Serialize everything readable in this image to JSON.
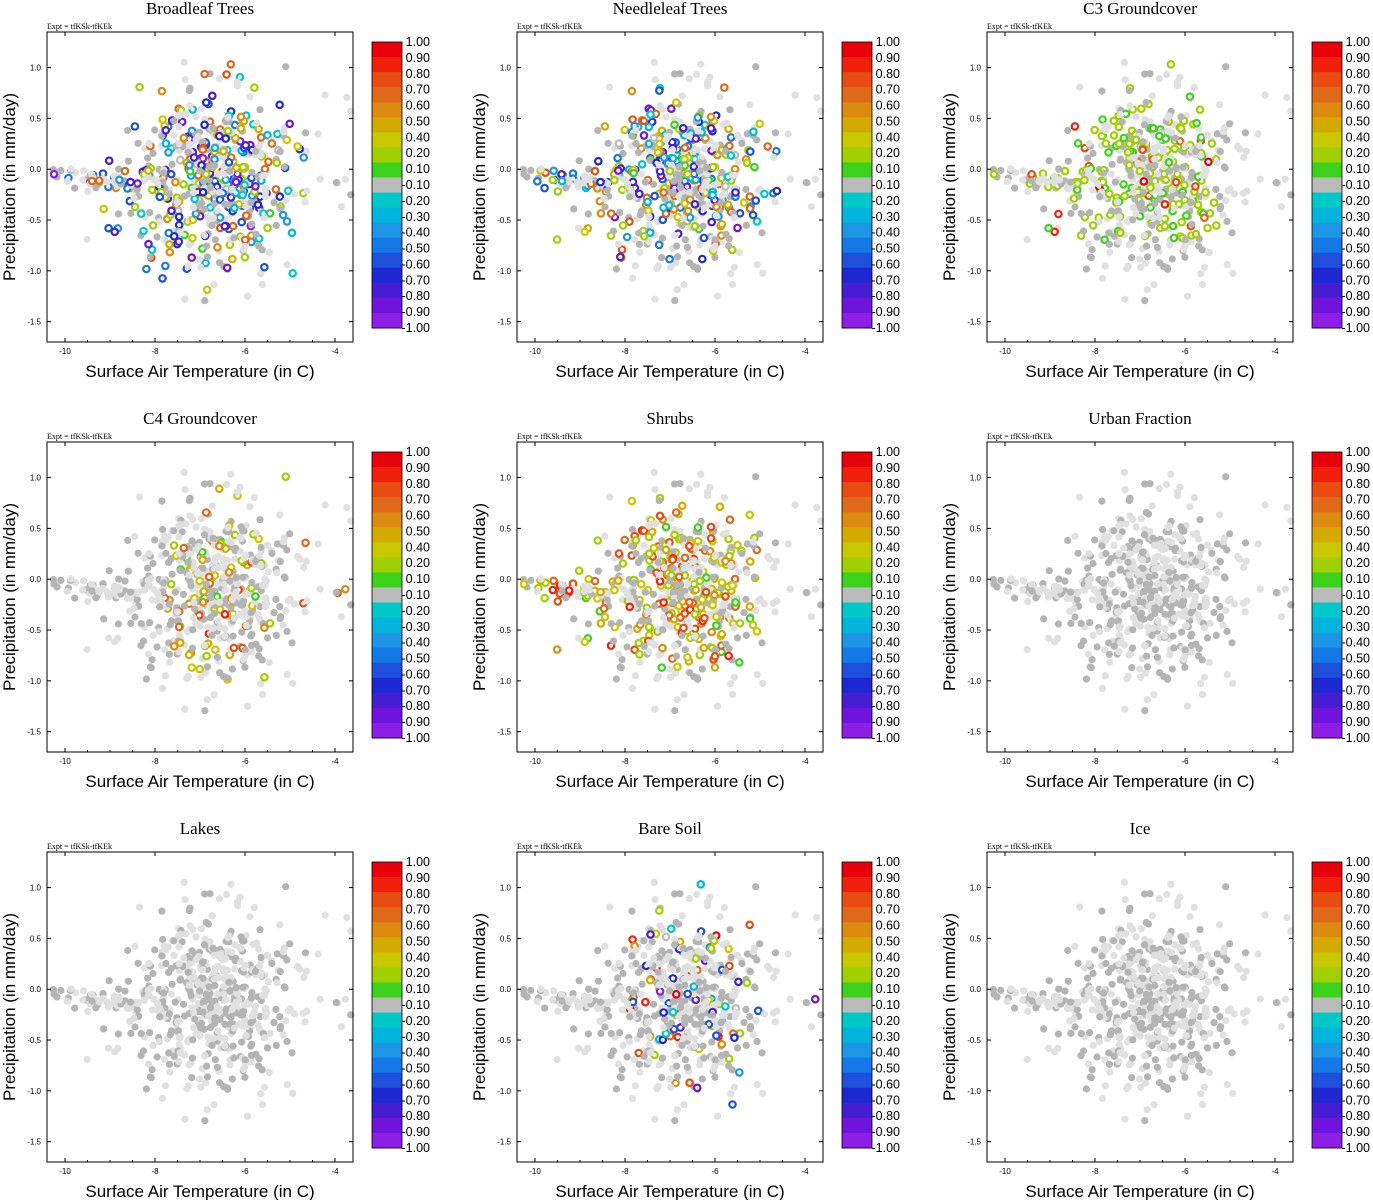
{
  "figure": {
    "expt": "Expt = tfKSk-tfKEk",
    "xlabel": "Surface Air Temperature (in C)",
    "ylabel": "Precipitation (in mm/day)",
    "xlim": [
      -10.4,
      -3.6
    ],
    "ylim": [
      -1.7,
      1.35
    ],
    "xticks": [
      -10,
      -8,
      -6,
      -4
    ],
    "yticks": [
      1.0,
      0.5,
      0.0,
      -0.5,
      -1.0,
      -1.5
    ],
    "xtick_labels": [
      "-10",
      "-8",
      "-6",
      "-4"
    ],
    "ytick_labels": [
      "1.0",
      "0.5",
      "0.0",
      "-0.5",
      "-1.0",
      "-1.5"
    ]
  },
  "colorbar": {
    "labels": [
      "1.00",
      "0.90",
      "0.80",
      "0.70",
      "0.60",
      "0.50",
      "0.40",
      "0.20",
      "0.10",
      "-0.10",
      "-0.20",
      "-0.30",
      "-0.40",
      "-0.50",
      "-0.60",
      "-0.70",
      "-0.80",
      "-0.90",
      "-1.00"
    ],
    "colors": [
      "#e8000b",
      "#f0200a",
      "#e84c10",
      "#e0681a",
      "#dc8a10",
      "#d4aa00",
      "#c8c800",
      "#a0d000",
      "#3cd21c",
      "#bbbbbb",
      "#00c8c8",
      "#00b4dc",
      "#1e96e6",
      "#1478e6",
      "#1e50dc",
      "#1e28d2",
      "#461ed2",
      "#6e14dc",
      "#8c1ee6"
    ]
  },
  "point_colors": {
    "neutral": "#b4b4b4",
    "background": "#e0e0e0"
  },
  "chart_data": [
    {
      "type": "scatter",
      "title": "Broadleaf Trees",
      "pattern": "mixed-cool",
      "highlight_region": {
        "x": [
          -10.4,
          -4.3
        ],
        "y": [
          -1.2,
          1.3
        ]
      },
      "value_range": [
        -1.0,
        0.8
      ],
      "highlight_fraction": 0.55
    },
    {
      "type": "scatter",
      "title": "Needleleaf Trees",
      "pattern": "mixed-warm",
      "highlight_region": {
        "x": [
          -10.4,
          -4.3
        ],
        "y": [
          -0.9,
          0.9
        ]
      },
      "value_range": [
        -0.9,
        0.8
      ],
      "highlight_fraction": 0.55
    },
    {
      "type": "scatter",
      "title": "C3 Groundcover",
      "pattern": "green",
      "highlight_region": {
        "x": [
          -10.4,
          -5.3
        ],
        "y": [
          -0.7,
          1.3
        ]
      },
      "value_range": [
        0.1,
        1.0
      ],
      "highlight_fraction": 0.35
    },
    {
      "type": "scatter",
      "title": "C4 Groundcover",
      "pattern": "warm-sparse",
      "highlight_region": {
        "x": [
          -7.8,
          -3.6
        ],
        "y": [
          -1.2,
          1.3
        ]
      },
      "value_range": [
        0.1,
        0.9
      ],
      "highlight_fraction": 0.2
    },
    {
      "type": "scatter",
      "title": "Shrubs",
      "pattern": "warm",
      "highlight_region": {
        "x": [
          -10.4,
          -5.0
        ],
        "y": [
          -0.9,
          0.8
        ]
      },
      "value_range": [
        0.1,
        0.9
      ],
      "highlight_fraction": 0.45
    },
    {
      "type": "scatter",
      "title": "Urban Fraction",
      "pattern": "none",
      "highlight_region": null,
      "value_range": null,
      "highlight_fraction": 0
    },
    {
      "type": "scatter",
      "title": "Lakes",
      "pattern": "none",
      "highlight_region": null,
      "value_range": null,
      "highlight_fraction": 0
    },
    {
      "type": "scatter",
      "title": "Bare Soil",
      "pattern": "mixed-sparse",
      "highlight_region": {
        "x": [
          -8.0,
          -3.6
        ],
        "y": [
          -1.2,
          1.3
        ]
      },
      "value_range": [
        -1.0,
        1.0
      ],
      "highlight_fraction": 0.15
    },
    {
      "type": "scatter",
      "title": "Ice",
      "pattern": "none",
      "highlight_region": null,
      "value_range": null,
      "highlight_fraction": 0
    }
  ]
}
